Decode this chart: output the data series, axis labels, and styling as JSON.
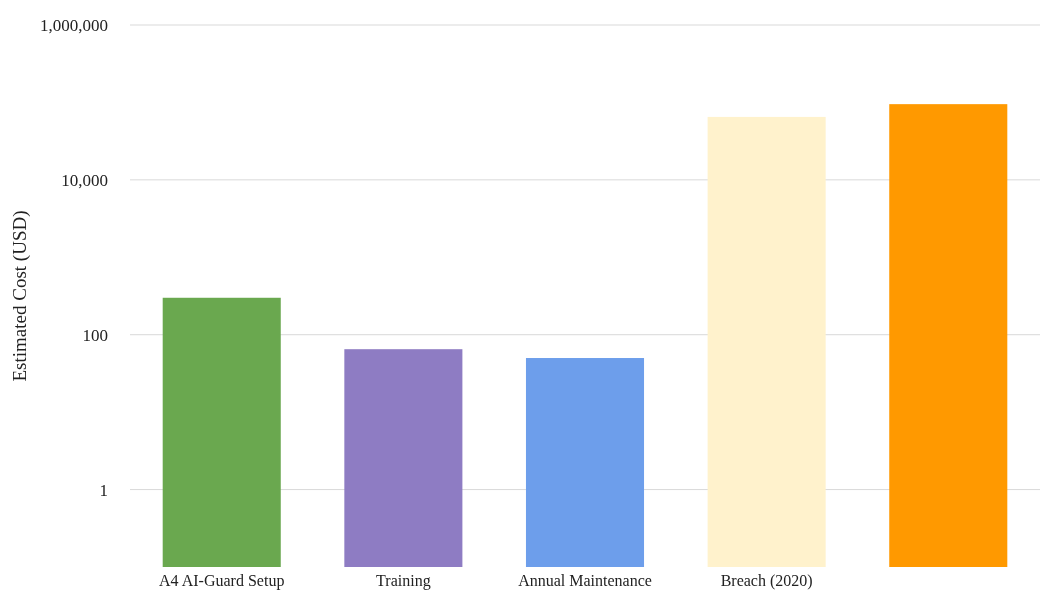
{
  "chart_data": {
    "type": "bar",
    "ylabel": "Estimated Cost (USD)",
    "categories": [
      "A4 AI-Guard Setup",
      "Training",
      "Annual Maintenance",
      "Breach (2020)",
      null
    ],
    "values": [
      300,
      65,
      50,
      65000,
      95000
    ],
    "colors": [
      "#6aa84f",
      "#8e7cc3",
      "#6d9eeb",
      "#fff2cc",
      "#ff9900"
    ],
    "log": true,
    "ylim": [
      0.1,
      1000000
    ],
    "yticks": [
      {
        "value": 1,
        "label": "1"
      },
      {
        "value": 100,
        "label": "100"
      },
      {
        "value": 10000,
        "label": "10,000"
      },
      {
        "value": 1000000,
        "label": "1,000,000"
      }
    ],
    "grid": "y"
  }
}
